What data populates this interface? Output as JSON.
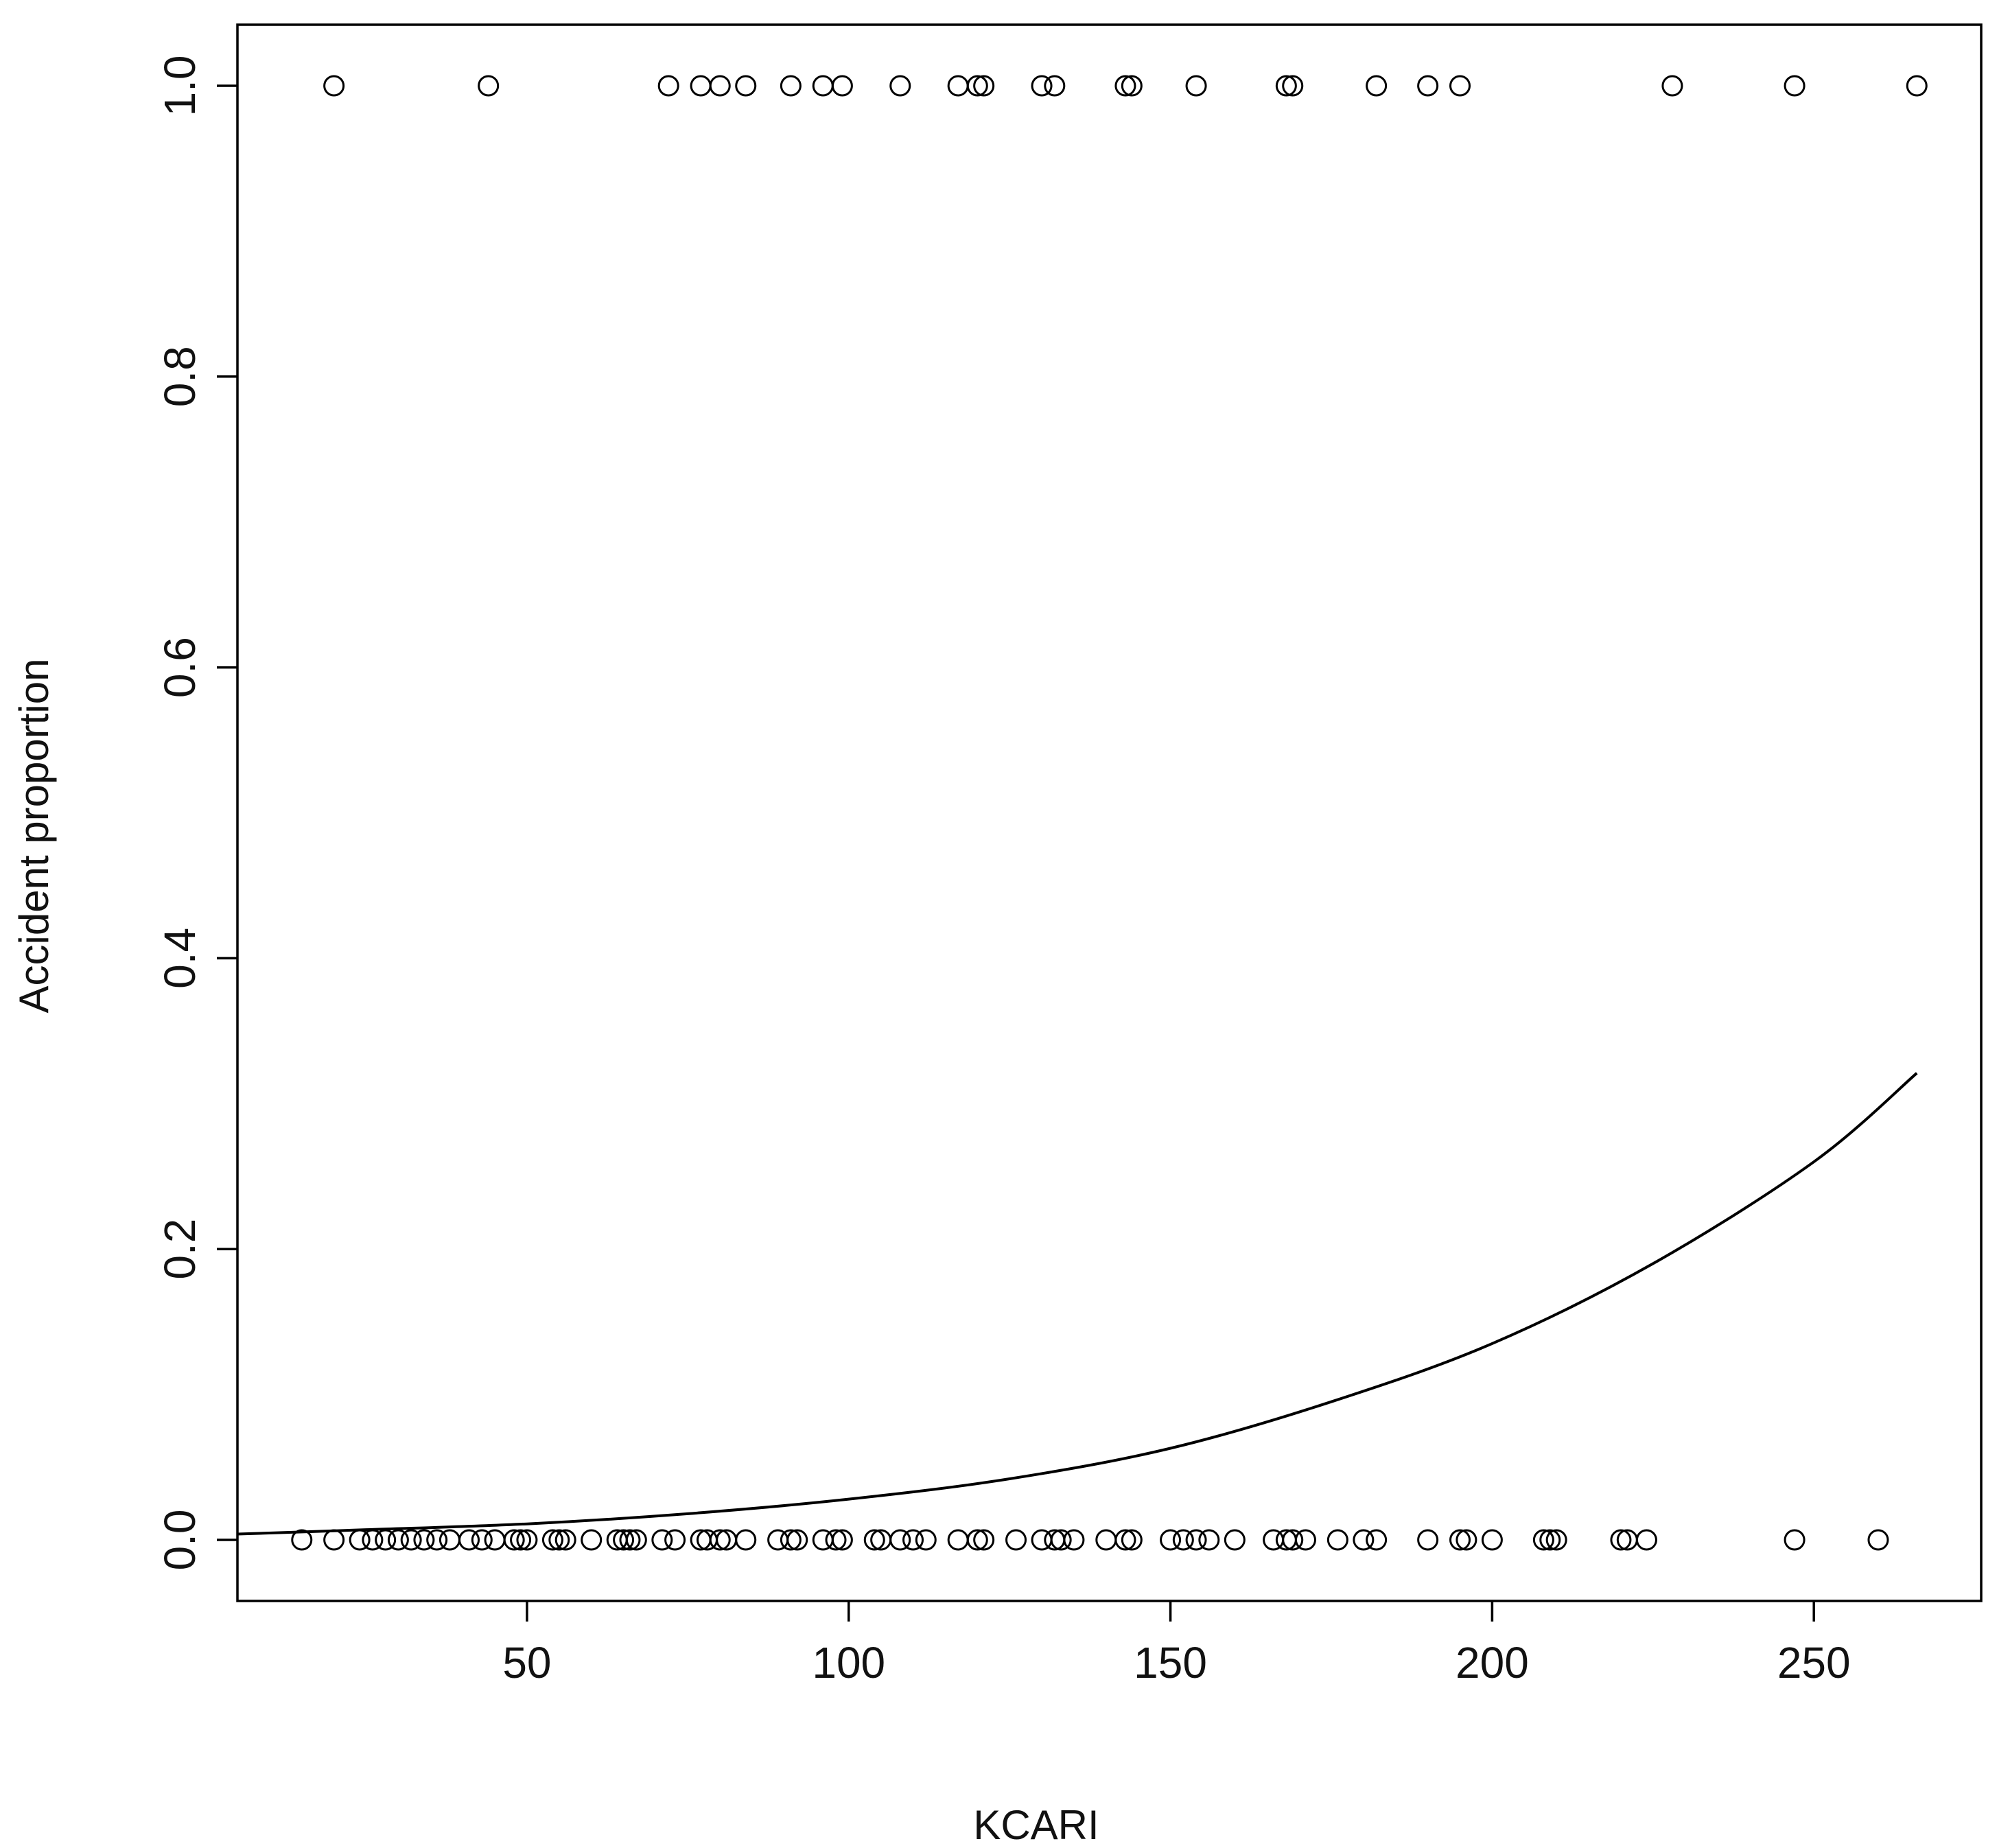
{
  "chart_data": {
    "type": "scatter",
    "xlabel": "KCARI",
    "ylabel": "Accident proportion",
    "xlim": [
      5,
      276
    ],
    "ylim": [
      -0.042,
      1.042
    ],
    "x_ticks": [
      50,
      100,
      150,
      200,
      250
    ],
    "y_ticks": [
      0.0,
      0.2,
      0.4,
      0.6,
      0.8,
      1.0
    ],
    "x_tick_labels": [
      "50",
      "100",
      "150",
      "200",
      "250"
    ],
    "y_tick_labels": [
      "0.0",
      "0.2",
      "0.4",
      "0.6",
      "0.8",
      "1.0"
    ],
    "grid": false,
    "series": [
      {
        "role": "observed",
        "marker": "open-circle",
        "y": 1,
        "x": [
          20,
          44,
          72,
          77,
          80,
          84,
          91,
          96,
          99,
          108,
          117,
          120,
          121,
          130,
          132,
          143,
          144,
          154,
          168,
          169,
          182,
          190,
          195,
          228,
          247,
          266
        ]
      },
      {
        "role": "observed",
        "marker": "open-circle",
        "y": 0,
        "x": [
          15,
          20,
          24,
          26,
          28,
          30,
          32,
          34,
          36,
          38,
          41,
          43,
          45,
          48,
          49,
          50,
          54,
          55,
          56,
          60,
          64,
          65,
          66,
          67,
          71,
          73,
          77,
          78,
          80,
          81,
          84,
          89,
          91,
          92,
          96,
          98,
          99,
          104,
          105,
          108,
          110,
          112,
          117,
          120,
          121,
          126,
          130,
          132,
          133,
          135,
          140,
          143,
          144,
          150,
          152,
          154,
          156,
          160,
          166,
          168,
          169,
          171,
          176,
          180,
          182,
          190,
          195,
          196,
          200,
          208,
          209,
          210,
          220,
          221,
          224,
          247,
          260
        ]
      },
      {
        "role": "fitted",
        "type": "line",
        "x": [
          5,
          25,
          50,
          75,
          100,
          125,
          150,
          175,
          200,
          225,
          250,
          266
        ],
        "y": [
          0.004,
          0.007,
          0.011,
          0.018,
          0.028,
          0.042,
          0.063,
          0.095,
          0.135,
          0.19,
          0.26,
          0.321
        ]
      }
    ]
  }
}
